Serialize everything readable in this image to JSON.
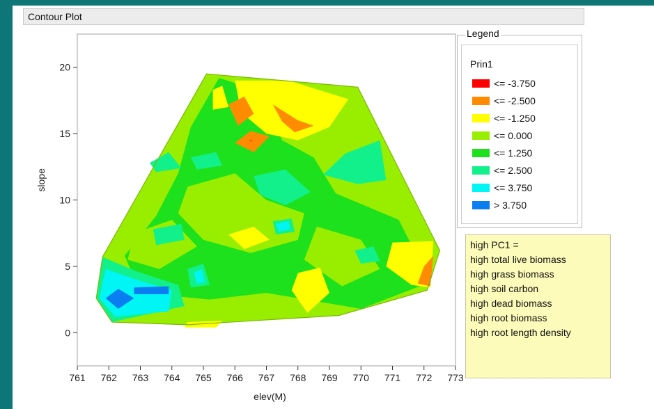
{
  "window": {
    "title": "Contour Plot"
  },
  "legend": {
    "title": "Legend",
    "variable": "Prin1",
    "items": [
      {
        "label": "<= -3.750",
        "color": "#ff0000"
      },
      {
        "label": "<= -2.500",
        "color": "#ff8c00"
      },
      {
        "label": "<= -1.250",
        "color": "#ffff00"
      },
      {
        "label": "<= 0.000",
        "color": "#99ee00"
      },
      {
        "label": "<= 1.250",
        "color": "#1ee11e"
      },
      {
        "label": "<= 2.500",
        "color": "#12f08c"
      },
      {
        "label": "<= 3.750",
        "color": "#00f5f5"
      },
      {
        "label": "> 3.750",
        "color": "#0a7df0"
      }
    ]
  },
  "note": {
    "lines": [
      "high PC1 =",
      "high total live biomass",
      "high grass biomass",
      "high soil carbon",
      "high dead biomass",
      "high root biomass",
      "high root length density"
    ]
  },
  "chart_data": {
    "type": "contour",
    "title": "",
    "xlabel": "elev(M)",
    "ylabel": "slope",
    "xlim": [
      761,
      773
    ],
    "ylim": [
      -2.5,
      22.5
    ],
    "xticks": [
      761,
      762,
      763,
      764,
      765,
      766,
      767,
      768,
      769,
      770,
      771,
      772,
      773
    ],
    "yticks": [
      0,
      5,
      10,
      15,
      20
    ],
    "grid": false,
    "legend_position": "right",
    "hull": [
      [
        765.1,
        19.5
      ],
      [
        769.9,
        18.5
      ],
      [
        772.5,
        6.2
      ],
      [
        772.1,
        3.2
      ],
      [
        769.3,
        1.3
      ],
      [
        764.5,
        0.6
      ],
      [
        762.1,
        0.8
      ],
      [
        761.6,
        2.6
      ],
      [
        761.8,
        5.7
      ]
    ],
    "regions": [
      {
        "level": "<= 0.000",
        "polygon": [
          [
            765.1,
            19.5
          ],
          [
            769.9,
            18.5
          ],
          [
            772.5,
            6.2
          ],
          [
            772.1,
            3.2
          ],
          [
            769.3,
            1.3
          ],
          [
            764.5,
            0.6
          ],
          [
            762.1,
            0.8
          ],
          [
            761.6,
            2.6
          ],
          [
            761.8,
            5.7
          ]
        ]
      },
      {
        "level": "<= 1.250",
        "polygon": [
          [
            765.5,
            19.2
          ],
          [
            766.8,
            18.2
          ],
          [
            767.5,
            14.5
          ],
          [
            768.5,
            13.2
          ],
          [
            769.2,
            10.5
          ],
          [
            771.2,
            8.5
          ],
          [
            772.2,
            3.8
          ],
          [
            770.0,
            1.8
          ],
          [
            767.0,
            3.0
          ],
          [
            765.2,
            2.5
          ],
          [
            763.0,
            3.0
          ],
          [
            762.5,
            5.8
          ],
          [
            763.5,
            8.8
          ],
          [
            764.2,
            12.0
          ],
          [
            764.6,
            15.5
          ]
        ]
      },
      {
        "level": "<= 0.000",
        "polygon": [
          [
            764.5,
            11.0
          ],
          [
            766.0,
            12.0
          ],
          [
            767.0,
            10.0
          ],
          [
            768.2,
            9.0
          ],
          [
            768.0,
            7.0
          ],
          [
            766.5,
            6.0
          ],
          [
            765.0,
            7.0
          ],
          [
            764.2,
            9.0
          ]
        ]
      },
      {
        "level": "<= 0.000",
        "polygon": [
          [
            762.8,
            7.5
          ],
          [
            764.0,
            8.5
          ],
          [
            764.8,
            6.5
          ],
          [
            763.6,
            4.8
          ],
          [
            762.6,
            5.5
          ]
        ]
      },
      {
        "level": "<= 0.000",
        "polygon": [
          [
            768.6,
            8.0
          ],
          [
            770.0,
            7.0
          ],
          [
            770.6,
            4.8
          ],
          [
            769.4,
            3.5
          ],
          [
            768.2,
            5.5
          ]
        ]
      },
      {
        "level": "<= 2.500",
        "polygon": [
          [
            761.8,
            5.7
          ],
          [
            762.9,
            4.6
          ],
          [
            764.2,
            3.6
          ],
          [
            764.4,
            2.0
          ],
          [
            762.1,
            0.8
          ],
          [
            761.6,
            2.6
          ]
        ]
      },
      {
        "level": "<= 3.750",
        "polygon": [
          [
            761.9,
            4.8
          ],
          [
            763.0,
            3.9
          ],
          [
            764.0,
            3.2
          ],
          [
            763.9,
            1.6
          ],
          [
            762.2,
            1.2
          ],
          [
            761.7,
            2.6
          ]
        ]
      },
      {
        "level": "> 3.750",
        "polygon": [
          [
            761.9,
            2.6
          ],
          [
            762.3,
            3.3
          ],
          [
            762.8,
            2.6
          ],
          [
            762.3,
            1.8
          ]
        ]
      },
      {
        "level": "> 3.750",
        "polygon": [
          [
            762.8,
            3.4
          ],
          [
            763.9,
            3.5
          ],
          [
            763.9,
            2.9
          ],
          [
            762.8,
            2.9
          ]
        ]
      },
      {
        "level": "<= 2.500",
        "polygon": [
          [
            769.5,
            13.5
          ],
          [
            770.6,
            14.5
          ],
          [
            770.8,
            11.5
          ],
          [
            769.9,
            11.2
          ],
          [
            768.8,
            11.9
          ]
        ]
      },
      {
        "level": "<= 2.500",
        "polygon": [
          [
            766.6,
            11.8
          ],
          [
            767.6,
            12.3
          ],
          [
            768.4,
            10.6
          ],
          [
            767.6,
            9.6
          ],
          [
            766.8,
            10.4
          ]
        ]
      },
      {
        "level": "<= 2.500",
        "polygon": [
          [
            764.6,
            13.2
          ],
          [
            765.4,
            13.6
          ],
          [
            765.6,
            12.6
          ],
          [
            764.8,
            12.3
          ]
        ]
      },
      {
        "level": "<= 2.500",
        "polygon": [
          [
            763.3,
            12.8
          ],
          [
            763.9,
            13.6
          ],
          [
            764.3,
            12.4
          ],
          [
            763.5,
            12.1
          ]
        ]
      },
      {
        "level": "<= 2.500",
        "polygon": [
          [
            763.4,
            7.8
          ],
          [
            764.3,
            8.2
          ],
          [
            764.4,
            7.0
          ],
          [
            763.5,
            6.6
          ]
        ]
      },
      {
        "level": "<= 2.500",
        "polygon": [
          [
            764.5,
            4.8
          ],
          [
            765.0,
            5.2
          ],
          [
            765.2,
            3.6
          ],
          [
            764.6,
            3.4
          ]
        ]
      },
      {
        "level": "<= 2.500",
        "polygon": [
          [
            767.2,
            8.4
          ],
          [
            767.8,
            8.6
          ],
          [
            767.9,
            7.6
          ],
          [
            767.3,
            7.4
          ]
        ]
      },
      {
        "level": "<= 2.500",
        "polygon": [
          [
            769.8,
            6.2
          ],
          [
            770.4,
            6.5
          ],
          [
            770.6,
            5.4
          ],
          [
            770.0,
            5.2
          ]
        ]
      },
      {
        "level": "<= 3.750",
        "polygon": [
          [
            764.7,
            4.5
          ],
          [
            764.95,
            4.8
          ],
          [
            765.05,
            3.8
          ],
          [
            764.8,
            3.7
          ]
        ]
      },
      {
        "level": "<= 3.750",
        "polygon": [
          [
            767.3,
            8.2
          ],
          [
            767.7,
            8.4
          ],
          [
            767.75,
            7.8
          ],
          [
            767.4,
            7.6
          ]
        ]
      },
      {
        "level": "<= -1.250",
        "polygon": [
          [
            766.0,
            19.0
          ],
          [
            767.7,
            19.0
          ],
          [
            769.6,
            17.6
          ],
          [
            769.0,
            15.5
          ],
          [
            768.0,
            14.5
          ],
          [
            767.0,
            15.0
          ],
          [
            766.2,
            16.6
          ]
        ]
      },
      {
        "level": "<= -1.250",
        "polygon": [
          [
            765.3,
            18.3
          ],
          [
            765.6,
            18.6
          ],
          [
            765.8,
            17.0
          ],
          [
            765.3,
            16.8
          ]
        ]
      },
      {
        "level": "<= -1.250",
        "polygon": [
          [
            771.0,
            6.8
          ],
          [
            772.3,
            6.9
          ],
          [
            772.2,
            3.4
          ],
          [
            771.6,
            3.6
          ],
          [
            770.8,
            5.0
          ]
        ]
      },
      {
        "level": "<= -1.250",
        "polygon": [
          [
            768.0,
            4.5
          ],
          [
            768.7,
            4.9
          ],
          [
            769.0,
            3.0
          ],
          [
            768.3,
            1.5
          ],
          [
            767.8,
            3.2
          ]
        ]
      },
      {
        "level": "<= -1.250",
        "polygon": [
          [
            765.8,
            7.4
          ],
          [
            766.6,
            8.0
          ],
          [
            767.1,
            7.0
          ],
          [
            766.3,
            6.3
          ]
        ]
      },
      {
        "level": "<= -1.250",
        "polygon": [
          [
            764.5,
            0.8
          ],
          [
            765.6,
            0.9
          ],
          [
            765.4,
            0.4
          ],
          [
            764.4,
            0.4
          ]
        ]
      },
      {
        "level": "<= -2.500",
        "polygon": [
          [
            765.8,
            17.2
          ],
          [
            766.3,
            17.8
          ],
          [
            766.6,
            16.5
          ],
          [
            766.1,
            15.6
          ]
        ]
      },
      {
        "level": "<= -2.500",
        "polygon": [
          [
            767.2,
            17.2
          ],
          [
            768.0,
            16.0
          ],
          [
            768.5,
            15.6
          ],
          [
            767.9,
            15.1
          ],
          [
            767.5,
            15.9
          ]
        ]
      },
      {
        "level": "<= -2.500",
        "polygon": [
          [
            766.0,
            14.3
          ],
          [
            766.5,
            15.2
          ],
          [
            767.1,
            14.8
          ],
          [
            766.6,
            13.6
          ]
        ]
      },
      {
        "level": "<= -2.500",
        "polygon": [
          [
            772.0,
            5.0
          ],
          [
            772.3,
            5.8
          ],
          [
            772.2,
            3.5
          ],
          [
            771.8,
            3.7
          ]
        ]
      },
      {
        "level": "<= -3.750",
        "polygon": [
          [
            766.46,
            14.5
          ],
          [
            766.56,
            14.5
          ],
          [
            766.51,
            14.42
          ]
        ]
      }
    ]
  }
}
